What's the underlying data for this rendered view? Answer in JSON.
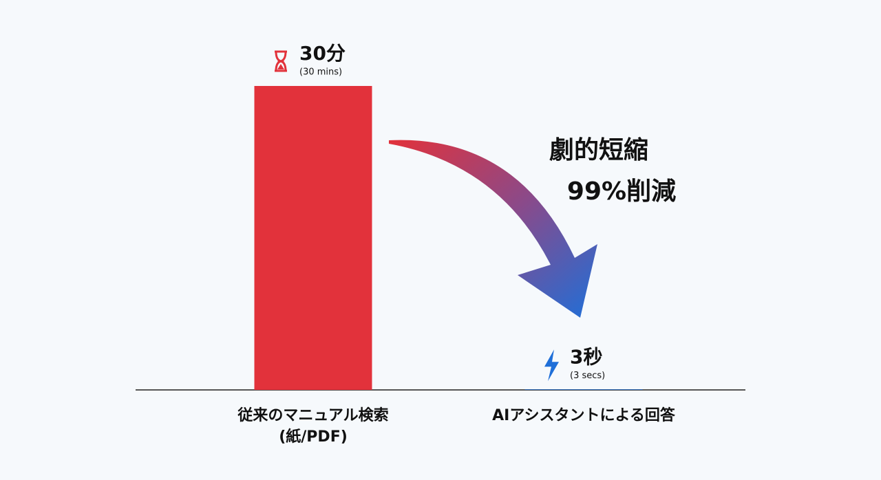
{
  "chart_data": {
    "type": "bar",
    "categories": [
      "従来のマニュアル検索",
      "AIアシスタントによる回答"
    ],
    "category_sublabels": [
      "(紙/PDF)",
      null
    ],
    "values": [
      1800,
      3
    ],
    "value_labels": [
      "30分",
      "3秒"
    ],
    "value_sublabels": [
      "(30 mins)",
      "(3 secs)"
    ],
    "colors": [
      "#e2323b",
      "#1f6fd8"
    ],
    "ylim": [
      0,
      1800
    ],
    "annotations": [
      "劇的短縮",
      "99%削減"
    ]
  }
}
